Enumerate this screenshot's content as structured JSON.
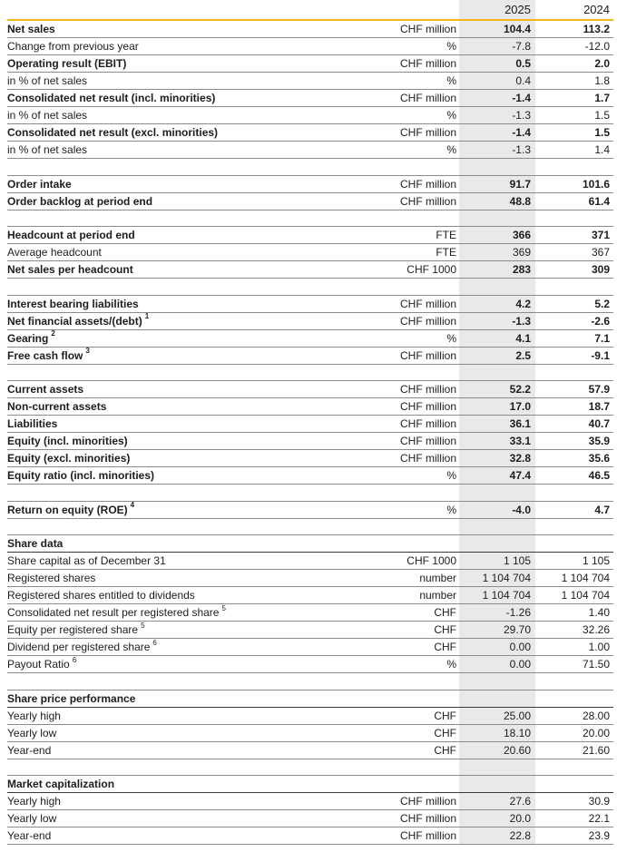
{
  "meta": {
    "accent_color": "#F3B71A",
    "stripe_color": "#E9E9E9",
    "border_color": "#8c8c8c"
  },
  "header": {
    "col_2025": "2025",
    "col_2024": "2024"
  },
  "rows": [
    {
      "type": "data",
      "bold": true,
      "label": "Net sales",
      "unit": "CHF million",
      "v2025": "104.4",
      "v2024": "113.2"
    },
    {
      "type": "data",
      "bold": false,
      "label": "Change from previous year",
      "unit": "%",
      "v2025": "-7.8",
      "v2024": "-12.0"
    },
    {
      "type": "data",
      "bold": true,
      "label": "Operating result (EBIT)",
      "unit": "CHF million",
      "v2025": "0.5",
      "v2024": "2.0"
    },
    {
      "type": "data",
      "bold": false,
      "label": "in % of net sales",
      "unit": "%",
      "v2025": "0.4",
      "v2024": "1.8"
    },
    {
      "type": "data",
      "bold": true,
      "label": "Consolidated net result (incl. minorities)",
      "unit": "CHF million",
      "v2025": "-1.4",
      "v2024": "1.7"
    },
    {
      "type": "data",
      "bold": false,
      "label": "in % of net sales",
      "unit": "%",
      "v2025": "-1.3",
      "v2024": "1.5"
    },
    {
      "type": "data",
      "bold": true,
      "label": "Consolidated net result (excl. minorities)",
      "unit": "CHF million",
      "v2025": "-1.4",
      "v2024": "1.5"
    },
    {
      "type": "data",
      "bold": false,
      "label": "in % of net sales",
      "unit": "%",
      "v2025": "-1.3",
      "v2024": "1.4"
    },
    {
      "type": "spacer"
    },
    {
      "type": "data",
      "bold": true,
      "label": "Order intake",
      "unit": "CHF million",
      "v2025": "91.7",
      "v2024": "101.6"
    },
    {
      "type": "data",
      "bold": true,
      "label": "Order backlog at period end",
      "unit": "CHF million",
      "v2025": "48.8",
      "v2024": "61.4"
    },
    {
      "type": "spacer"
    },
    {
      "type": "data",
      "bold": true,
      "label": "Headcount at period end",
      "unit": "FTE",
      "v2025": "366",
      "v2024": "371"
    },
    {
      "type": "data",
      "bold": false,
      "label": "Average headcount",
      "unit": "FTE",
      "v2025": "369",
      "v2024": "367"
    },
    {
      "type": "data",
      "bold": true,
      "label": "Net sales per headcount",
      "unit": "CHF 1000",
      "v2025": "283",
      "v2024": "309"
    },
    {
      "type": "spacer"
    },
    {
      "type": "data",
      "bold": true,
      "label": "Interest bearing liabilities",
      "unit": "CHF million",
      "v2025": "4.2",
      "v2024": "5.2"
    },
    {
      "type": "data",
      "bold": true,
      "label": "Net financial assets/(debt)",
      "sup": "1",
      "unit": "CHF million",
      "v2025": "-1.3",
      "v2024": "-2.6"
    },
    {
      "type": "data",
      "bold": true,
      "label": "Gearing",
      "sup": "2",
      "unit": "%",
      "v2025": "4.1",
      "v2024": "7.1"
    },
    {
      "type": "data",
      "bold": true,
      "label": "Free cash flow",
      "sup": "3",
      "unit": "CHF million",
      "v2025": "2.5",
      "v2024": "-9.1"
    },
    {
      "type": "spacer"
    },
    {
      "type": "data",
      "bold": true,
      "label": "Current assets",
      "unit": "CHF million",
      "v2025": "52.2",
      "v2024": "57.9"
    },
    {
      "type": "data",
      "bold": true,
      "label": "Non-current assets",
      "unit": "CHF million",
      "v2025": "17.0",
      "v2024": "18.7"
    },
    {
      "type": "data",
      "bold": true,
      "label": "Liabilities",
      "unit": "CHF million",
      "v2025": "36.1",
      "v2024": "40.7"
    },
    {
      "type": "data",
      "bold": true,
      "label": "Equity (incl. minorities)",
      "unit": "CHF million",
      "v2025": "33.1",
      "v2024": "35.9"
    },
    {
      "type": "data",
      "bold": true,
      "label": "Equity (excl. minorities)",
      "unit": "CHF million",
      "v2025": "32.8",
      "v2024": "35.6"
    },
    {
      "type": "data",
      "bold": true,
      "label": "Equity ratio (incl. minorities)",
      "unit": "%",
      "v2025": "47.4",
      "v2024": "46.5"
    },
    {
      "type": "spacer"
    },
    {
      "type": "data",
      "bold": true,
      "label": "Return on equity (ROE)",
      "sup": "4",
      "unit": "%",
      "v2025": "-4.0",
      "v2024": "4.7"
    },
    {
      "type": "spacer"
    },
    {
      "type": "section",
      "label": "Share data"
    },
    {
      "type": "data",
      "bold": false,
      "label": "Share capital as of December 31",
      "unit": "CHF 1000",
      "v2025": "1 105",
      "v2024": "1 105"
    },
    {
      "type": "data",
      "bold": false,
      "label": "Registered shares",
      "unit": "number",
      "v2025": "1 104 704",
      "v2024": "1 104 704"
    },
    {
      "type": "data",
      "bold": false,
      "label": "Registered shares entitled to dividends",
      "unit": "number",
      "v2025": "1 104 704",
      "v2024": "1 104 704"
    },
    {
      "type": "data",
      "bold": false,
      "label": "Consolidated net result per registered share",
      "sup": "5",
      "unit": "CHF",
      "v2025": "-1.26",
      "v2024": "1.40"
    },
    {
      "type": "data",
      "bold": false,
      "label": "Equity per registered share",
      "sup": "5",
      "unit": "CHF",
      "v2025": "29.70",
      "v2024": "32.26"
    },
    {
      "type": "data",
      "bold": false,
      "label": "Dividend per registered share",
      "sup": "6",
      "unit": "CHF",
      "v2025": "0.00",
      "v2024": "1.00"
    },
    {
      "type": "data",
      "bold": false,
      "label": "Payout Ratio",
      "sup": "6",
      "unit": "%",
      "v2025": "0.00",
      "v2024": "71.50"
    },
    {
      "type": "spacer"
    },
    {
      "type": "section",
      "label": "Share price performance"
    },
    {
      "type": "data",
      "bold": false,
      "label": "Yearly high",
      "unit": "CHF",
      "v2025": "25.00",
      "v2024": "28.00"
    },
    {
      "type": "data",
      "bold": false,
      "label": "Yearly low",
      "unit": "CHF",
      "v2025": "18.10",
      "v2024": "20.00"
    },
    {
      "type": "data",
      "bold": false,
      "label": "Year-end",
      "unit": "CHF",
      "v2025": "20.60",
      "v2024": "21.60"
    },
    {
      "type": "spacer"
    },
    {
      "type": "section",
      "label": "Market capitalization"
    },
    {
      "type": "data",
      "bold": false,
      "label": "Yearly high",
      "unit": "CHF million",
      "v2025": "27.6",
      "v2024": "30.9"
    },
    {
      "type": "data",
      "bold": false,
      "label": "Yearly low",
      "unit": "CHF million",
      "v2025": "20.0",
      "v2024": "22.1"
    },
    {
      "type": "data",
      "bold": false,
      "label": "Year-end",
      "unit": "CHF million",
      "v2025": "22.8",
      "v2024": "23.9"
    }
  ]
}
